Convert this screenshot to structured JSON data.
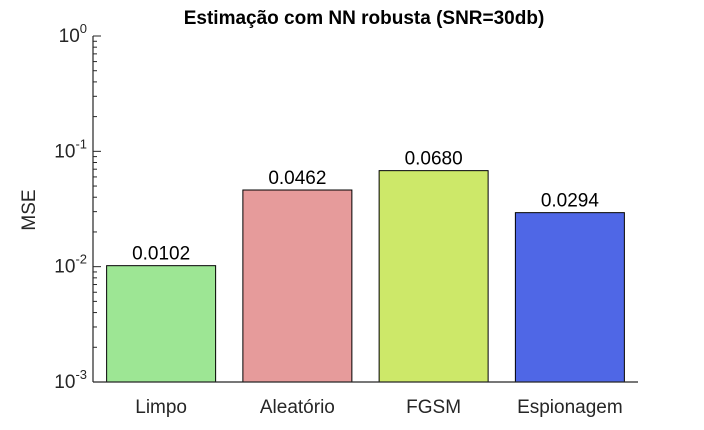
{
  "chart_data": {
    "type": "bar",
    "title": "Estimação com NN robusta (SNR=30db)",
    "ylabel": "MSE",
    "xlabel": "",
    "yscale": "log",
    "ylim": [
      0.001,
      1
    ],
    "ytick_labels": [
      {
        "base": "10",
        "exp": "-3"
      },
      {
        "base": "10",
        "exp": "-2"
      },
      {
        "base": "10",
        "exp": "-1"
      },
      {
        "base": "10",
        "exp": "0"
      }
    ],
    "categories": [
      "Limpo",
      "Aleatório",
      "FGSM",
      "Espionagem"
    ],
    "values": [
      0.0102,
      0.0462,
      0.068,
      0.0294
    ],
    "data_labels": [
      "0.0102",
      "0.0462",
      "0.0680",
      "0.0294"
    ],
    "colors": [
      "#9de694",
      "#e69b9b",
      "#cde869",
      "#4f67e6"
    ],
    "grid": false,
    "legend": "none"
  }
}
